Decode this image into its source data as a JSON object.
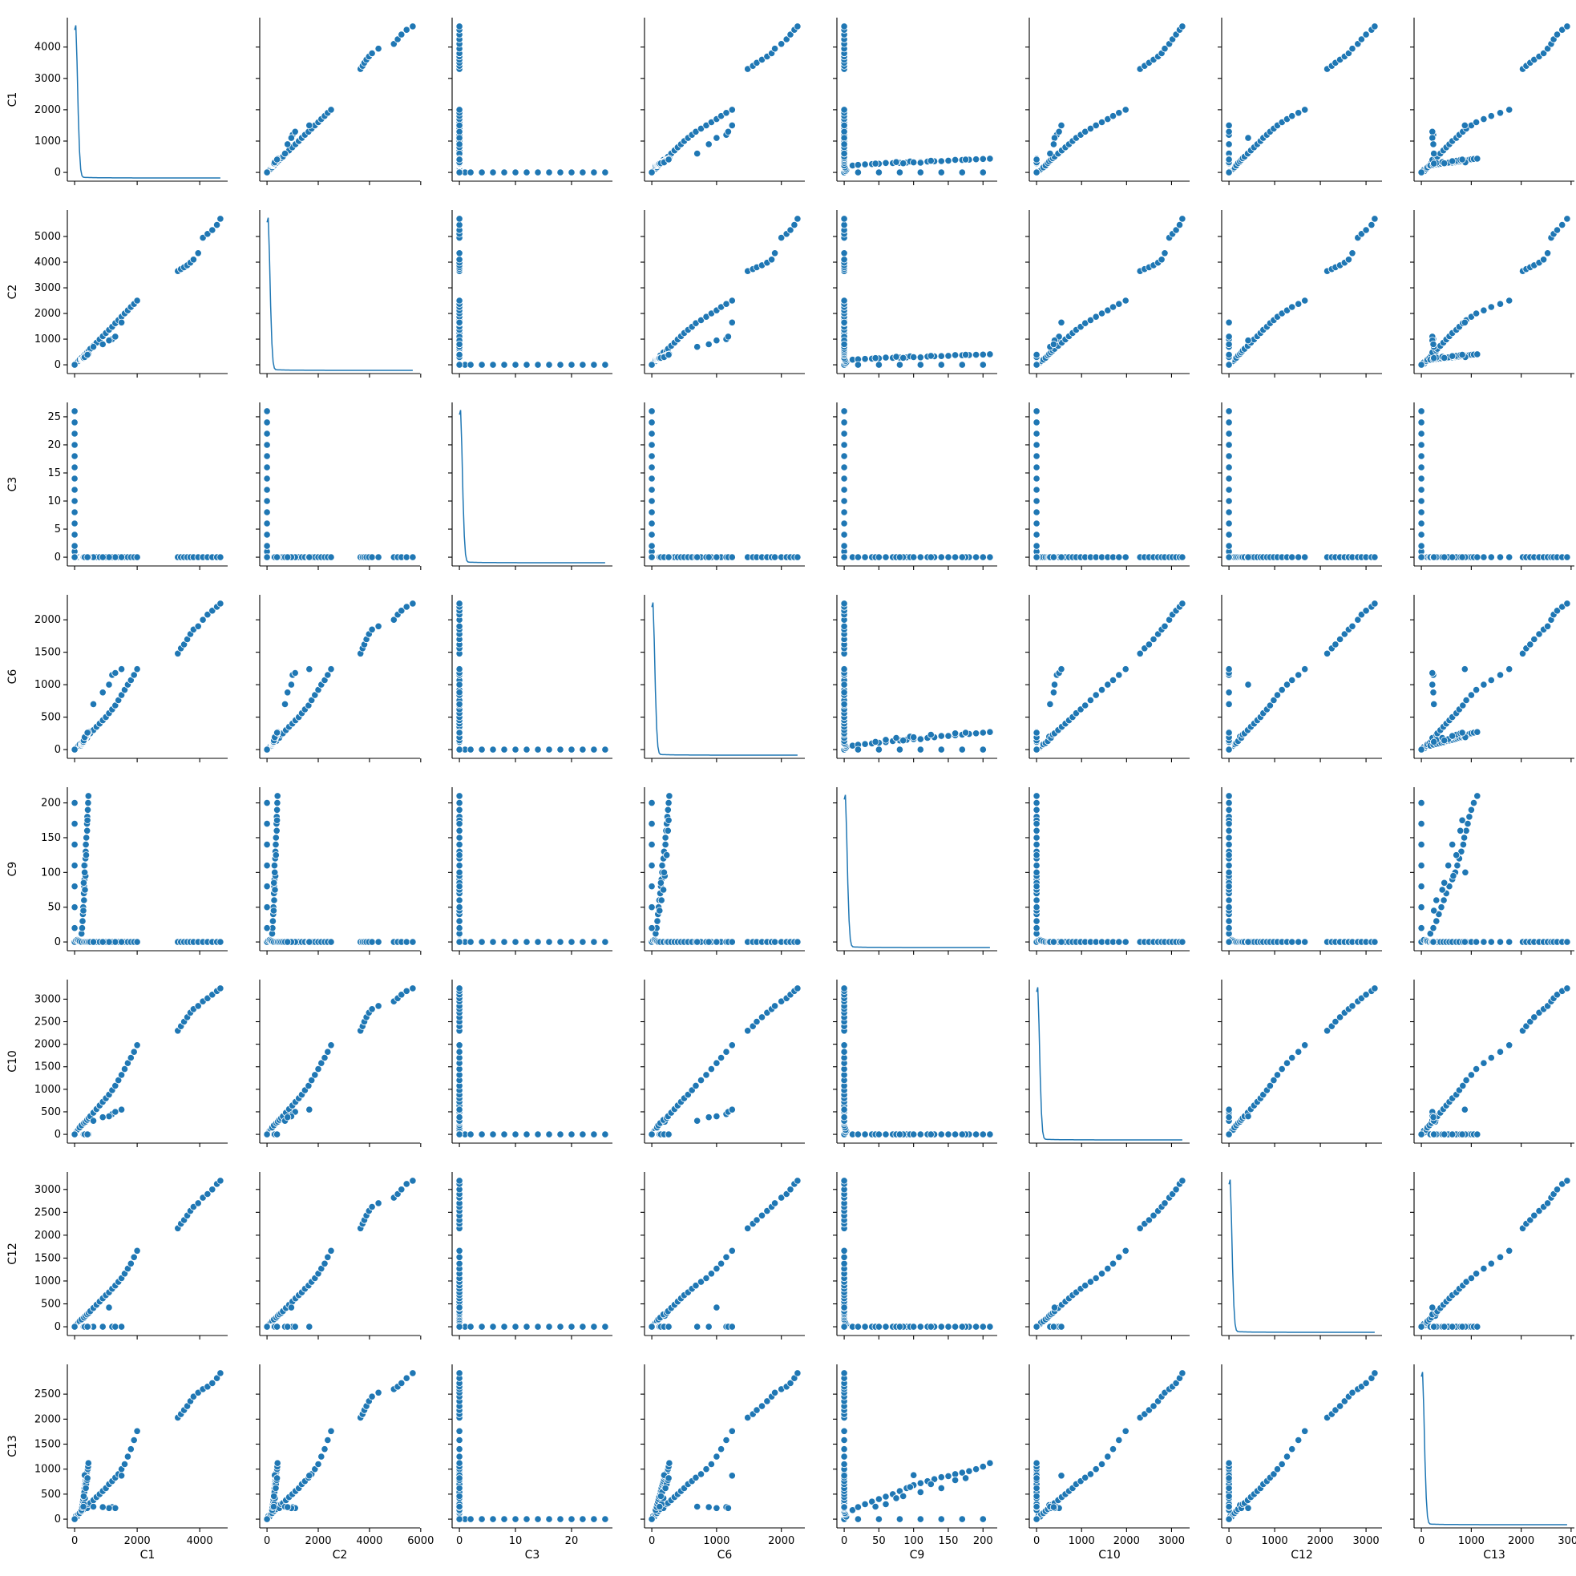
{
  "chart_data": {
    "type": "scatter",
    "subtype": "pairplot",
    "color": "#1f77b4",
    "diagonal": "kde",
    "variables": [
      "C1",
      "C2",
      "C3",
      "C6",
      "C9",
      "C10",
      "C12",
      "C13"
    ],
    "ranges": {
      "C1": [
        0,
        4660
      ],
      "C2": [
        0,
        5690
      ],
      "C3": [
        0,
        26
      ],
      "C6": [
        0,
        2250
      ],
      "C9": [
        0,
        210
      ],
      "C10": [
        0,
        3240
      ],
      "C12": [
        0,
        3190
      ],
      "C13": [
        0,
        2920
      ]
    },
    "ticks": {
      "C1": [
        0,
        1000,
        2000,
        3000,
        4000
      ],
      "C2": [
        0,
        1000,
        2000,
        3000,
        4000,
        5000
      ],
      "C3": [
        0,
        5,
        10,
        15,
        20,
        25
      ],
      "C6": [
        0,
        500,
        1000,
        1500,
        2000
      ],
      "C9": [
        0,
        50,
        100,
        150,
        200
      ],
      "C10": [
        0,
        500,
        1000,
        1500,
        2000,
        2500,
        3000
      ],
      "C12": [
        0,
        500,
        1000,
        1500,
        2000,
        2500,
        3000
      ],
      "C13": [
        0,
        500,
        1000,
        1500,
        2000,
        2500
      ]
    },
    "xticks": {
      "C1": [
        0,
        2000,
        4000
      ],
      "C2": [
        0,
        2000,
        4000,
        6000
      ],
      "C3": [
        0,
        10,
        20
      ],
      "C6": [
        0,
        1000,
        2000
      ],
      "C9": [
        0,
        50,
        100,
        150,
        200
      ],
      "C10": [
        0,
        1000,
        2000,
        3000
      ],
      "C12": [
        0,
        1000,
        2000,
        3000
      ],
      "C13": [
        0,
        1000,
        2000,
        3000
      ]
    },
    "yticks": {
      "C1": [
        0,
        1000,
        2000,
        3000,
        4000
      ],
      "C2": [
        0,
        1000,
        2000,
        3000,
        4000,
        5000
      ],
      "C3": [
        0,
        5,
        10,
        15,
        20,
        25
      ],
      "C6": [
        0,
        500,
        1000,
        1500,
        2000
      ],
      "C9": [
        0,
        50,
        100,
        150,
        200
      ],
      "C10": [
        0,
        500,
        1000,
        1500,
        2000,
        2500,
        3000
      ],
      "C12": [
        0,
        500,
        1000,
        1500,
        2000,
        2500,
        3000
      ],
      "C13": [
        0,
        500,
        1000,
        1500,
        2000,
        2500
      ]
    },
    "samples": [
      {
        "C1": 0,
        "C2": 0,
        "C3": 0,
        "C6": 0,
        "C9": 0,
        "C10": 0,
        "C12": 0,
        "C13": 0
      },
      {
        "C1": 0,
        "C2": 0,
        "C3": 1,
        "C6": 0,
        "C9": 0,
        "C10": 0,
        "C12": 0,
        "C13": 0
      },
      {
        "C1": 0,
        "C2": 0,
        "C3": 2,
        "C6": 0,
        "C9": 0,
        "C10": 0,
        "C12": 0,
        "C13": 0
      },
      {
        "C1": 0,
        "C2": 0,
        "C3": 4,
        "C6": 0,
        "C9": 0,
        "C10": 0,
        "C12": 0,
        "C13": 0
      },
      {
        "C1": 0,
        "C2": 0,
        "C3": 6,
        "C6": 0,
        "C9": 0,
        "C10": 0,
        "C12": 0,
        "C13": 0
      },
      {
        "C1": 0,
        "C2": 0,
        "C3": 8,
        "C6": 0,
        "C9": 0,
        "C10": 0,
        "C12": 0,
        "C13": 0
      },
      {
        "C1": 0,
        "C2": 0,
        "C3": 10,
        "C6": 0,
        "C9": 0,
        "C10": 0,
        "C12": 0,
        "C13": 0
      },
      {
        "C1": 0,
        "C2": 0,
        "C3": 12,
        "C6": 0,
        "C9": 0,
        "C10": 0,
        "C12": 0,
        "C13": 0
      },
      {
        "C1": 0,
        "C2": 0,
        "C3": 14,
        "C6": 0,
        "C9": 0,
        "C10": 0,
        "C12": 0,
        "C13": 0
      },
      {
        "C1": 0,
        "C2": 0,
        "C3": 16,
        "C6": 0,
        "C9": 0,
        "C10": 0,
        "C12": 0,
        "C13": 0
      },
      {
        "C1": 0,
        "C2": 0,
        "C3": 18,
        "C6": 0,
        "C9": 0,
        "C10": 0,
        "C12": 0,
        "C13": 0
      },
      {
        "C1": 0,
        "C2": 0,
        "C3": 20,
        "C6": 0,
        "C9": 0,
        "C10": 0,
        "C12": 0,
        "C13": 0
      },
      {
        "C1": 0,
        "C2": 0,
        "C3": 22,
        "C6": 0,
        "C9": 0,
        "C10": 0,
        "C12": 0,
        "C13": 0
      },
      {
        "C1": 0,
        "C2": 0,
        "C3": 24,
        "C6": 0,
        "C9": 0,
        "C10": 0,
        "C12": 0,
        "C13": 0
      },
      {
        "C1": 0,
        "C2": 0,
        "C3": 26,
        "C6": 0,
        "C9": 0,
        "C10": 0,
        "C12": 0,
        "C13": 0
      },
      {
        "C1": 40,
        "C2": 50,
        "C3": 0,
        "C6": 20,
        "C9": 2,
        "C10": 40,
        "C12": 30,
        "C13": 60
      },
      {
        "C1": 80,
        "C2": 100,
        "C3": 0,
        "C6": 40,
        "C9": 3,
        "C10": 80,
        "C12": 60,
        "C13": 50
      },
      {
        "C1": 120,
        "C2": 150,
        "C3": 0,
        "C6": 60,
        "C9": 2,
        "C10": 100,
        "C12": 90,
        "C13": 100
      },
      {
        "C1": 160,
        "C2": 200,
        "C3": 0,
        "C6": 80,
        "C9": 1,
        "C10": 150,
        "C12": 120,
        "C13": 120
      },
      {
        "C1": 220,
        "C2": 270,
        "C3": 0,
        "C6": 100,
        "C9": 0,
        "C10": 200,
        "C12": 160,
        "C13": 160
      },
      {
        "C1": 300,
        "C2": 360,
        "C3": 0,
        "C6": 130,
        "C9": 0,
        "C10": 250,
        "C12": 200,
        "C13": 200
      },
      {
        "C1": 350,
        "C2": 420,
        "C3": 0,
        "C6": 200,
        "C9": 0,
        "C10": 280,
        "C12": 240,
        "C13": 280
      },
      {
        "C1": 400,
        "C2": 480,
        "C3": 0,
        "C6": 180,
        "C9": 0,
        "C10": 320,
        "C12": 270,
        "C13": 220
      },
      {
        "C1": 450,
        "C2": 550,
        "C3": 0,
        "C6": 230,
        "C9": 0,
        "C10": 360,
        "C12": 300,
        "C13": 300
      },
      {
        "C1": 500,
        "C2": 620,
        "C3": 0,
        "C6": 250,
        "C9": 0,
        "C10": 400,
        "C12": 340,
        "C13": 320
      },
      {
        "C1": 600,
        "C2": 740,
        "C3": 0,
        "C6": 300,
        "C9": 0,
        "C10": 480,
        "C12": 410,
        "C13": 380
      },
      {
        "C1": 700,
        "C2": 860,
        "C3": 0,
        "C6": 350,
        "C9": 0,
        "C10": 560,
        "C12": 480,
        "C13": 440
      },
      {
        "C1": 800,
        "C2": 990,
        "C3": 0,
        "C6": 400,
        "C9": 0,
        "C10": 640,
        "C12": 550,
        "C13": 500
      },
      {
        "C1": 900,
        "C2": 1110,
        "C3": 0,
        "C6": 450,
        "C9": 0,
        "C10": 720,
        "C12": 620,
        "C13": 560
      },
      {
        "C1": 1000,
        "C2": 1240,
        "C3": 0,
        "C6": 500,
        "C9": 0,
        "C10": 800,
        "C12": 690,
        "C13": 620
      },
      {
        "C1": 1100,
        "C2": 1360,
        "C3": 0,
        "C6": 560,
        "C9": 0,
        "C10": 880,
        "C12": 750,
        "C13": 700
      },
      {
        "C1": 1200,
        "C2": 1480,
        "C3": 0,
        "C6": 620,
        "C9": 0,
        "C10": 980,
        "C12": 830,
        "C13": 760
      },
      {
        "C1": 1300,
        "C2": 1620,
        "C3": 0,
        "C6": 680,
        "C9": 0,
        "C10": 1080,
        "C12": 900,
        "C13": 830
      },
      {
        "C1": 1400,
        "C2": 1740,
        "C3": 0,
        "C6": 760,
        "C9": 0,
        "C10": 1200,
        "C12": 980,
        "C13": 900
      },
      {
        "C1": 1500,
        "C2": 1870,
        "C3": 0,
        "C6": 840,
        "C9": 0,
        "C10": 1320,
        "C12": 1060,
        "C13": 1000
      },
      {
        "C1": 1600,
        "C2": 2000,
        "C3": 0,
        "C6": 920,
        "C9": 0,
        "C10": 1450,
        "C12": 1160,
        "C13": 1100
      },
      {
        "C1": 1700,
        "C2": 2120,
        "C3": 0,
        "C6": 1000,
        "C9": 0,
        "C10": 1580,
        "C12": 1270,
        "C13": 1250
      },
      {
        "C1": 1800,
        "C2": 2250,
        "C3": 0,
        "C6": 1070,
        "C9": 0,
        "C10": 1700,
        "C12": 1380,
        "C13": 1400
      },
      {
        "C1": 1900,
        "C2": 2370,
        "C3": 0,
        "C6": 1150,
        "C9": 0,
        "C10": 1830,
        "C12": 1520,
        "C13": 1580
      },
      {
        "C1": 2000,
        "C2": 2500,
        "C3": 0,
        "C6": 1240,
        "C9": 0,
        "C10": 1980,
        "C12": 1660,
        "C13": 1760
      },
      {
        "C1": 3300,
        "C2": 3650,
        "C3": 0,
        "C6": 1480,
        "C9": 0,
        "C10": 2300,
        "C12": 2150,
        "C13": 2030
      },
      {
        "C1": 3400,
        "C2": 3730,
        "C3": 0,
        "C6": 1560,
        "C9": 0,
        "C10": 2400,
        "C12": 2250,
        "C13": 2100
      },
      {
        "C1": 3500,
        "C2": 3800,
        "C3": 0,
        "C6": 1620,
        "C9": 0,
        "C10": 2500,
        "C12": 2330,
        "C13": 2180
      },
      {
        "C1": 3600,
        "C2": 3880,
        "C3": 0,
        "C6": 1700,
        "C9": 0,
        "C10": 2600,
        "C12": 2430,
        "C13": 2260
      },
      {
        "C1": 3700,
        "C2": 3980,
        "C3": 0,
        "C6": 1780,
        "C9": 0,
        "C10": 2700,
        "C12": 2530,
        "C13": 2360
      },
      {
        "C1": 3800,
        "C2": 4100,
        "C3": 0,
        "C6": 1850,
        "C9": 0,
        "C10": 2780,
        "C12": 2620,
        "C13": 2450
      },
      {
        "C1": 3950,
        "C2": 4350,
        "C3": 0,
        "C6": 1900,
        "C9": 0,
        "C10": 2850,
        "C12": 2700,
        "C13": 2530
      },
      {
        "C1": 4100,
        "C2": 4950,
        "C3": 0,
        "C6": 2000,
        "C9": 0,
        "C10": 2950,
        "C12": 2820,
        "C13": 2600
      },
      {
        "C1": 4250,
        "C2": 5100,
        "C3": 0,
        "C6": 2080,
        "C9": 0,
        "C10": 3020,
        "C12": 2900,
        "C13": 2650
      },
      {
        "C1": 4400,
        "C2": 5250,
        "C3": 0,
        "C6": 2140,
        "C9": 0,
        "C10": 3100,
        "C12": 3000,
        "C13": 2720
      },
      {
        "C1": 4550,
        "C2": 5450,
        "C3": 0,
        "C6": 2200,
        "C9": 0,
        "C10": 3180,
        "C12": 3120,
        "C13": 2820
      },
      {
        "C1": 4660,
        "C2": 5690,
        "C3": 0,
        "C6": 2250,
        "C9": 0,
        "C10": 3240,
        "C12": 3190,
        "C13": 2920
      },
      {
        "C1": 1200,
        "C2": 1000,
        "C3": 0,
        "C6": 1150,
        "C9": 0,
        "C10": 450,
        "C12": 0,
        "C13": 240
      },
      {
        "C1": 1300,
        "C2": 1100,
        "C3": 0,
        "C6": 1180,
        "C9": 0,
        "C10": 500,
        "C12": 0,
        "C13": 220
      },
      {
        "C1": 1500,
        "C2": 1650,
        "C3": 0,
        "C6": 1240,
        "C9": 0,
        "C10": 550,
        "C12": 0,
        "C13": 870
      },
      {
        "C1": 1100,
        "C2": 950,
        "C3": 0,
        "C6": 1000,
        "C9": 0,
        "C10": 400,
        "C12": 420,
        "C13": 220
      },
      {
        "C1": 600,
        "C2": 700,
        "C3": 0,
        "C6": 700,
        "C9": 0,
        "C10": 300,
        "C12": 0,
        "C13": 250
      },
      {
        "C1": 900,
        "C2": 800,
        "C3": 0,
        "C6": 880,
        "C9": 0,
        "C10": 380,
        "C12": 0,
        "C13": 240
      },
      {
        "C1": 220,
        "C2": 200,
        "C3": 0,
        "C6": 60,
        "C9": 12,
        "C10": 0,
        "C12": 0,
        "C13": 180
      },
      {
        "C1": 240,
        "C2": 215,
        "C3": 0,
        "C6": 75,
        "C9": 20,
        "C10": 0,
        "C12": 0,
        "C13": 240
      },
      {
        "C1": 255,
        "C2": 230,
        "C3": 0,
        "C6": 85,
        "C9": 30,
        "C10": 0,
        "C12": 0,
        "C13": 300
      },
      {
        "C1": 265,
        "C2": 240,
        "C3": 0,
        "C6": 95,
        "C9": 40,
        "C10": 0,
        "C12": 0,
        "C13": 350
      },
      {
        "C1": 275,
        "C2": 250,
        "C3": 0,
        "C6": 105,
        "C9": 50,
        "C10": 0,
        "C12": 0,
        "C13": 400
      },
      {
        "C1": 285,
        "C2": 260,
        "C3": 0,
        "C6": 115,
        "C9": 60,
        "C10": 0,
        "C12": 0,
        "C13": 450
      },
      {
        "C1": 295,
        "C2": 270,
        "C3": 0,
        "C6": 130,
        "C9": 70,
        "C10": 0,
        "C12": 0,
        "C13": 500
      },
      {
        "C1": 305,
        "C2": 280,
        "C3": 0,
        "C6": 140,
        "C9": 80,
        "C10": 0,
        "C12": 0,
        "C13": 560
      },
      {
        "C1": 315,
        "C2": 290,
        "C3": 0,
        "C6": 150,
        "C9": 90,
        "C10": 0,
        "C12": 0,
        "C13": 620
      },
      {
        "C1": 325,
        "C2": 300,
        "C3": 0,
        "C6": 160,
        "C9": 100,
        "C10": 0,
        "C12": 0,
        "C13": 680
      },
      {
        "C1": 335,
        "C2": 310,
        "C3": 0,
        "C6": 170,
        "C9": 110,
        "C10": 0,
        "C12": 0,
        "C13": 720
      },
      {
        "C1": 345,
        "C2": 320,
        "C3": 0,
        "C6": 180,
        "C9": 120,
        "C10": 0,
        "C12": 0,
        "C13": 760
      },
      {
        "C1": 355,
        "C2": 330,
        "C3": 0,
        "C6": 190,
        "C9": 130,
        "C10": 0,
        "C12": 0,
        "C13": 800
      },
      {
        "C1": 365,
        "C2": 340,
        "C3": 0,
        "C6": 200,
        "C9": 140,
        "C10": 0,
        "C12": 0,
        "C13": 840
      },
      {
        "C1": 375,
        "C2": 350,
        "C3": 0,
        "C6": 210,
        "C9": 150,
        "C10": 0,
        "C12": 0,
        "C13": 860
      },
      {
        "C1": 385,
        "C2": 360,
        "C3": 0,
        "C6": 220,
        "C9": 160,
        "C10": 0,
        "C12": 0,
        "C13": 900
      },
      {
        "C1": 395,
        "C2": 370,
        "C3": 0,
        "C6": 230,
        "C9": 170,
        "C10": 0,
        "C12": 0,
        "C13": 930
      },
      {
        "C1": 405,
        "C2": 380,
        "C3": 0,
        "C6": 240,
        "C9": 180,
        "C10": 0,
        "C12": 0,
        "C13": 960
      },
      {
        "C1": 420,
        "C2": 390,
        "C3": 0,
        "C6": 250,
        "C9": 190,
        "C10": 0,
        "C12": 0,
        "C13": 1000
      },
      {
        "C1": 430,
        "C2": 400,
        "C3": 0,
        "C6": 260,
        "C9": 200,
        "C10": 0,
        "C12": 0,
        "C13": 1050
      },
      {
        "C1": 440,
        "C2": 410,
        "C3": 0,
        "C6": 270,
        "C9": 210,
        "C10": 0,
        "C12": 0,
        "C13": 1120
      },
      {
        "C1": 300,
        "C2": 280,
        "C3": 0,
        "C6": 150,
        "C9": 60,
        "C10": 0,
        "C12": 0,
        "C13": 300
      },
      {
        "C1": 330,
        "C2": 310,
        "C3": 0,
        "C6": 180,
        "C9": 75,
        "C10": 0,
        "C12": 0,
        "C13": 420
      },
      {
        "C1": 280,
        "C2": 260,
        "C3": 0,
        "C6": 120,
        "C9": 45,
        "C10": 0,
        "C12": 0,
        "C13": 250
      },
      {
        "C1": 350,
        "C2": 330,
        "C3": 0,
        "C6": 200,
        "C9": 95,
        "C10": 0,
        "C12": 0,
        "C13": 640
      },
      {
        "C1": 310,
        "C2": 290,
        "C3": 0,
        "C6": 160,
        "C9": 110,
        "C10": 0,
        "C12": 0,
        "C13": 540
      },
      {
        "C1": 370,
        "C2": 350,
        "C3": 0,
        "C6": 230,
        "C9": 125,
        "C10": 0,
        "C12": 0,
        "C13": 700
      },
      {
        "C1": 290,
        "C2": 270,
        "C3": 0,
        "C6": 140,
        "C9": 85,
        "C10": 0,
        "C12": 0,
        "C13": 460
      },
      {
        "C1": 360,
        "C2": 340,
        "C3": 0,
        "C6": 210,
        "C9": 140,
        "C10": 0,
        "C12": 0,
        "C13": 620
      },
      {
        "C1": 400,
        "C2": 380,
        "C3": 0,
        "C6": 250,
        "C9": 160,
        "C10": 0,
        "C12": 0,
        "C13": 780
      },
      {
        "C1": 320,
        "C2": 300,
        "C3": 0,
        "C6": 190,
        "C9": 100,
        "C10": 0,
        "C12": 0,
        "C13": 880
      },
      {
        "C1": 410,
        "C2": 390,
        "C3": 0,
        "C6": 260,
        "C9": 175,
        "C10": 0,
        "C12": 0,
        "C13": 820
      },
      {
        "C1": 0,
        "C2": 0,
        "C3": 0,
        "C6": 0,
        "C9": 20,
        "C10": 0,
        "C12": 0,
        "C13": 0
      },
      {
        "C1": 0,
        "C2": 0,
        "C3": 0,
        "C6": 0,
        "C9": 50,
        "C10": 0,
        "C12": 0,
        "C13": 0
      },
      {
        "C1": 0,
        "C2": 0,
        "C3": 0,
        "C6": 0,
        "C9": 80,
        "C10": 0,
        "C12": 0,
        "C13": 0
      },
      {
        "C1": 0,
        "C2": 0,
        "C3": 0,
        "C6": 0,
        "C9": 110,
        "C10": 0,
        "C12": 0,
        "C13": 0
      },
      {
        "C1": 0,
        "C2": 0,
        "C3": 0,
        "C6": 0,
        "C9": 140,
        "C10": 0,
        "C12": 0,
        "C13": 0
      },
      {
        "C1": 0,
        "C2": 0,
        "C3": 0,
        "C6": 0,
        "C9": 170,
        "C10": 0,
        "C12": 0,
        "C13": 0
      },
      {
        "C1": 0,
        "C2": 0,
        "C3": 0,
        "C6": 0,
        "C9": 200,
        "C10": 0,
        "C12": 0,
        "C13": 0
      }
    ]
  }
}
